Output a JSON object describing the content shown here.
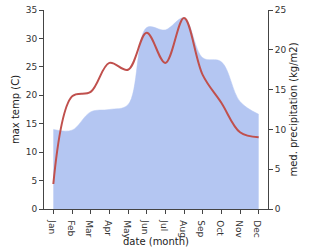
{
  "chart_data": {
    "type": "line",
    "x_label": "date (month)",
    "y_label": "max temp (C)",
    "y2_label": "med. precipitation (kg/m2)",
    "categories": [
      "Jan",
      "Feb",
      "Mar",
      "Apr",
      "May",
      "Jun",
      "Jul",
      "Aug",
      "Sep",
      "Oct",
      "Nov",
      "Dec"
    ],
    "series": [
      {
        "name": "med. precipitation",
        "type": "area",
        "axis": "y2",
        "color": "#b4c6f2",
        "line_style": "spline",
        "values": [
          10,
          9.9,
          12.2,
          12.5,
          13.1,
          22.8,
          22.5,
          24,
          19,
          18.5,
          13.5,
          11.9
        ]
      },
      {
        "name": "max temp",
        "type": "line",
        "color": "#c0504d",
        "line_style": "spline",
        "values": [
          4.4,
          19.8,
          20.6,
          25.7,
          24.5,
          31,
          25.7,
          33.6,
          23.6,
          18.7,
          13.5,
          12.6
        ]
      }
    ],
    "ylim": [
      0,
      35
    ],
    "yticks": [
      0,
      5,
      10,
      15,
      20,
      25,
      30,
      35
    ],
    "y2lim": [
      0,
      25
    ],
    "y2ticks": [
      0,
      5,
      10,
      15,
      20,
      25
    ],
    "grid": false
  }
}
